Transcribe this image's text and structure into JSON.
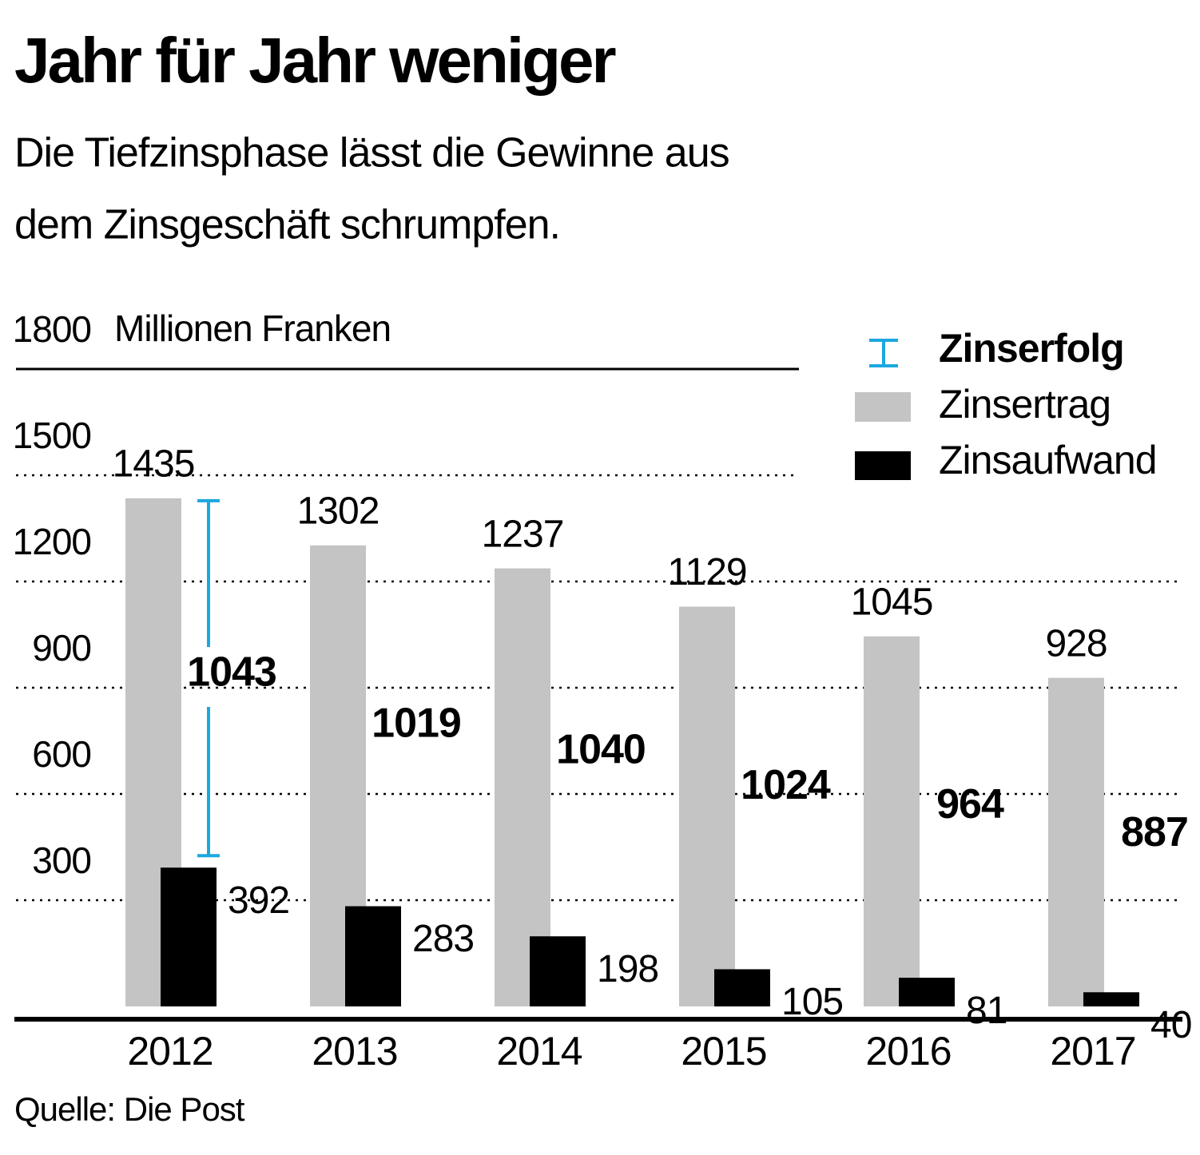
{
  "chart_data": {
    "type": "bar",
    "title": "Jahr für Jahr weniger",
    "subtitle": [
      "Die Tiefzinsphase lässt die Gewinne aus",
      "dem Zinsgeschäft schrumpfen."
    ],
    "y_label": "Millionen Franken",
    "source": "Quelle: Die Post",
    "categories": [
      "2012",
      "2013",
      "2014",
      "2015",
      "2016",
      "2017"
    ],
    "series": [
      {
        "name": "Zinsertrag",
        "color": "#c4c4c4",
        "values": [
          1435,
          1302,
          1237,
          1129,
          1045,
          928
        ]
      },
      {
        "name": "Zinsaufwand",
        "color": "#000000",
        "values": [
          392,
          283,
          198,
          105,
          81,
          40
        ]
      },
      {
        "name": "Zinserfolg",
        "color": "#1ba8df",
        "values": [
          1043,
          1019,
          1040,
          1024,
          964,
          887
        ]
      }
    ],
    "ylim": [
      0,
      1800
    ],
    "yticks": [
      300,
      600,
      900,
      1200,
      1500,
      1800
    ],
    "grid": true,
    "legend": "top-right"
  }
}
